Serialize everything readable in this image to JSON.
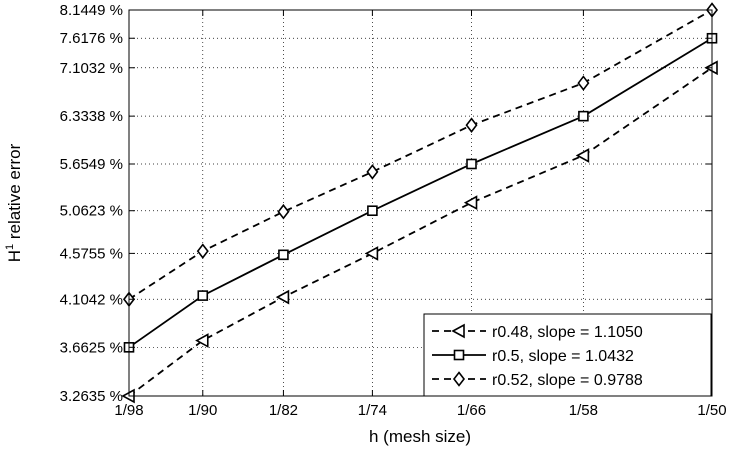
{
  "chart_data": {
    "type": "line",
    "xlabel": "h (mesh size)",
    "ylabel_base": "H",
    "ylabel_sup": "1",
    "ylabel_rest": " relative error",
    "x_categories": [
      "1/98",
      "1/90",
      "1/82",
      "1/74",
      "1/66",
      "1/58",
      "1/50"
    ],
    "x_values": [
      0.010204,
      0.011111,
      0.012195,
      0.013514,
      0.015152,
      0.017241,
      0.02
    ],
    "x_scale": "log",
    "y_scale": "log",
    "y_ticks": [
      3.2635,
      3.6625,
      4.1042,
      4.5755,
      5.0623,
      5.6549,
      6.3338,
      7.1032,
      7.6176,
      8.1449
    ],
    "y_tick_labels": [
      "3.2635 %",
      "3.6625 %",
      "4.1042 %",
      "4.5755 %",
      "5.0623 %",
      "5.6549 %",
      "6.3338 %",
      "7.1032 %",
      "7.6176 %",
      "8.1449 %"
    ],
    "ylim": [
      3.2635,
      8.1449
    ],
    "grid": true,
    "legend_position": "bottom-right",
    "series": [
      {
        "name": "r0.48, slope = 1.1050",
        "marker": "triangle-left",
        "line_style": "dashed",
        "values": [
          3.2635,
          3.722,
          4.125,
          4.575,
          5.16,
          5.77,
          7.1032
        ]
      },
      {
        "name": "r0.5, slope = 1.0432",
        "marker": "square",
        "line_style": "solid",
        "values": [
          3.6625,
          4.14,
          4.56,
          5.0623,
          5.6549,
          6.3338,
          7.6176
        ]
      },
      {
        "name": "r0.52, slope = 0.9788",
        "marker": "diamond",
        "line_style": "dashed",
        "values": [
          4.1042,
          4.6,
          5.05,
          5.55,
          6.2,
          6.85,
          8.1449
        ]
      }
    ]
  }
}
